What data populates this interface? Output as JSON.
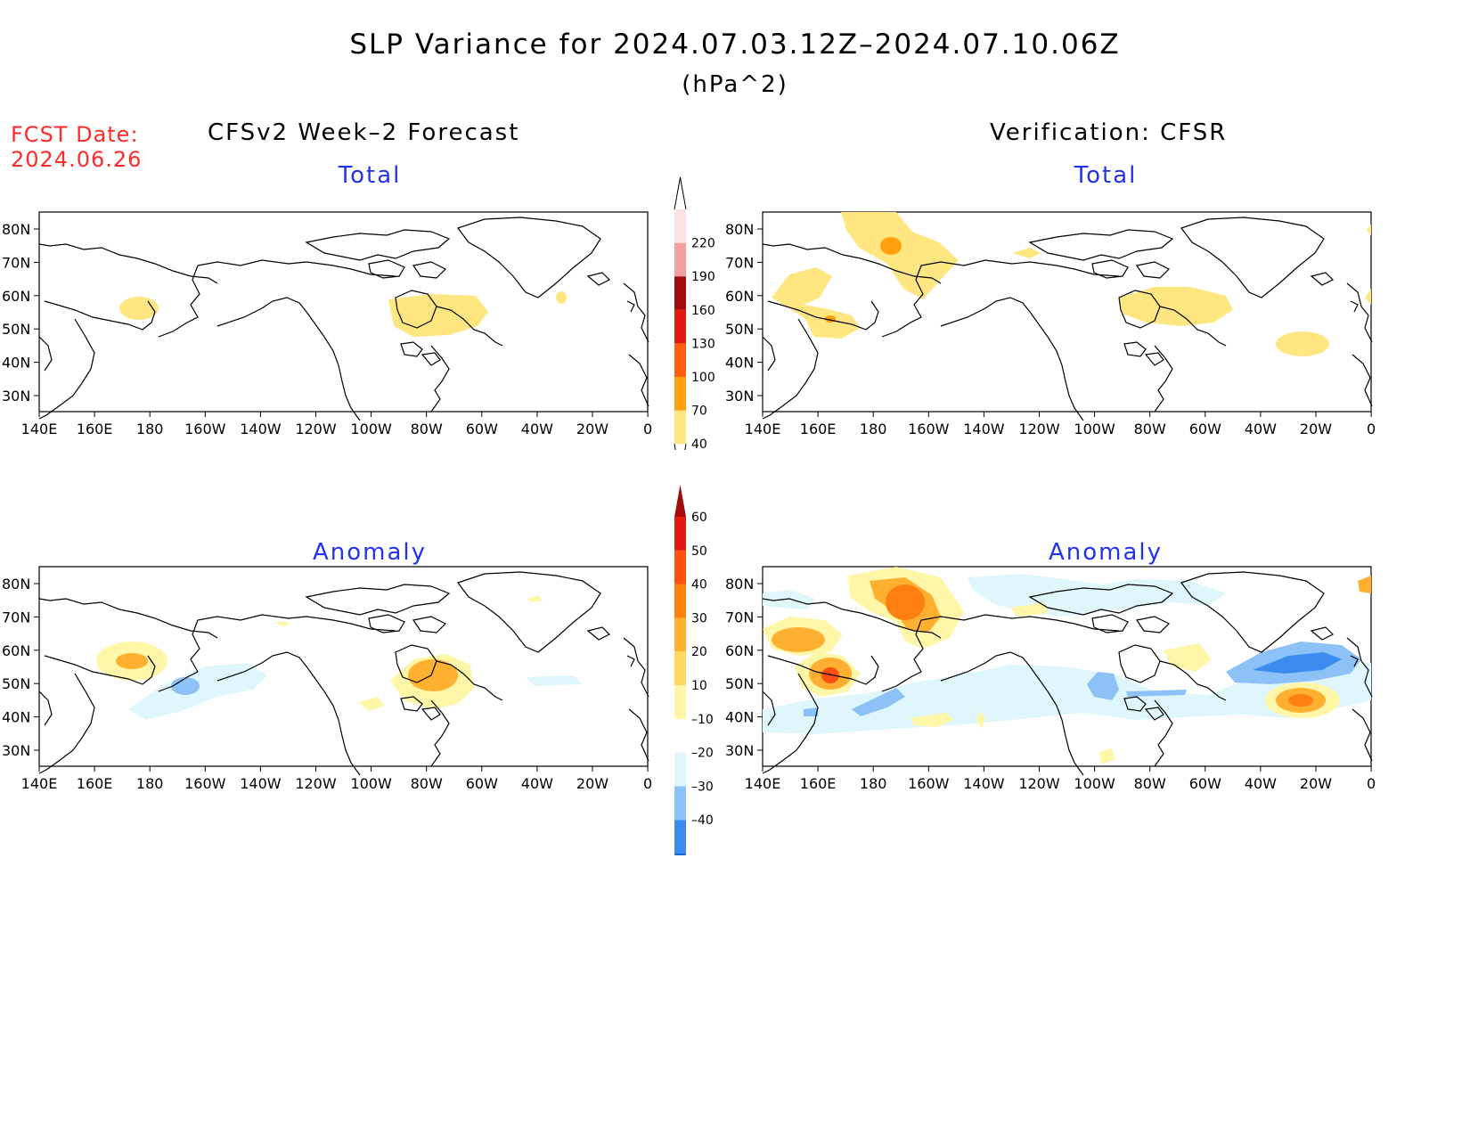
{
  "title": "SLP Variance for 2024.07.03.12Z–2024.07.10.06Z",
  "units": "(hPa^2)",
  "fcst": {
    "label": "FCST Date:",
    "date": "2024.06.26"
  },
  "columns": {
    "left": "CFSv2 Week–2 Forecast",
    "right": "Verification: CFSR"
  },
  "panels": {
    "fc_total": "Total",
    "vf_total": "Total",
    "fc_anom": "Anomaly",
    "vf_anom": "Anomaly"
  },
  "axes": {
    "lat_labels": [
      "80N",
      "70N",
      "60N",
      "50N",
      "40N",
      "30N"
    ],
    "lon_labels": [
      "140E",
      "160E",
      "180",
      "160W",
      "140W",
      "120W",
      "100W",
      "80W",
      "60W",
      "40W",
      "20W",
      "0"
    ]
  },
  "colorbars": {
    "total": {
      "labels": [
        "40",
        "70",
        "100",
        "130",
        "160",
        "190",
        "220"
      ],
      "colors": [
        "#ffe680",
        "#ffa010",
        "#ff6010",
        "#e01a10",
        "#a00c0c",
        "#f2a0a0",
        "#fde4e4"
      ]
    },
    "anomaly": {
      "labels": [
        "–40",
        "–30",
        "–20",
        "–10",
        "10",
        "20",
        "30",
        "40",
        "50",
        "60"
      ],
      "colors": [
        "#1f66d8",
        "#3c8cf0",
        "#8cc2f8",
        "#dff6fd",
        "#ffffff",
        "#fff6a8",
        "#ffd862",
        "#ffb030",
        "#ff8010",
        "#ff5010",
        "#e01a10",
        "#a00c0c"
      ]
    }
  },
  "palette": {
    "title_red": "#ff2a2a",
    "panel_blue": "#2233ee"
  }
}
